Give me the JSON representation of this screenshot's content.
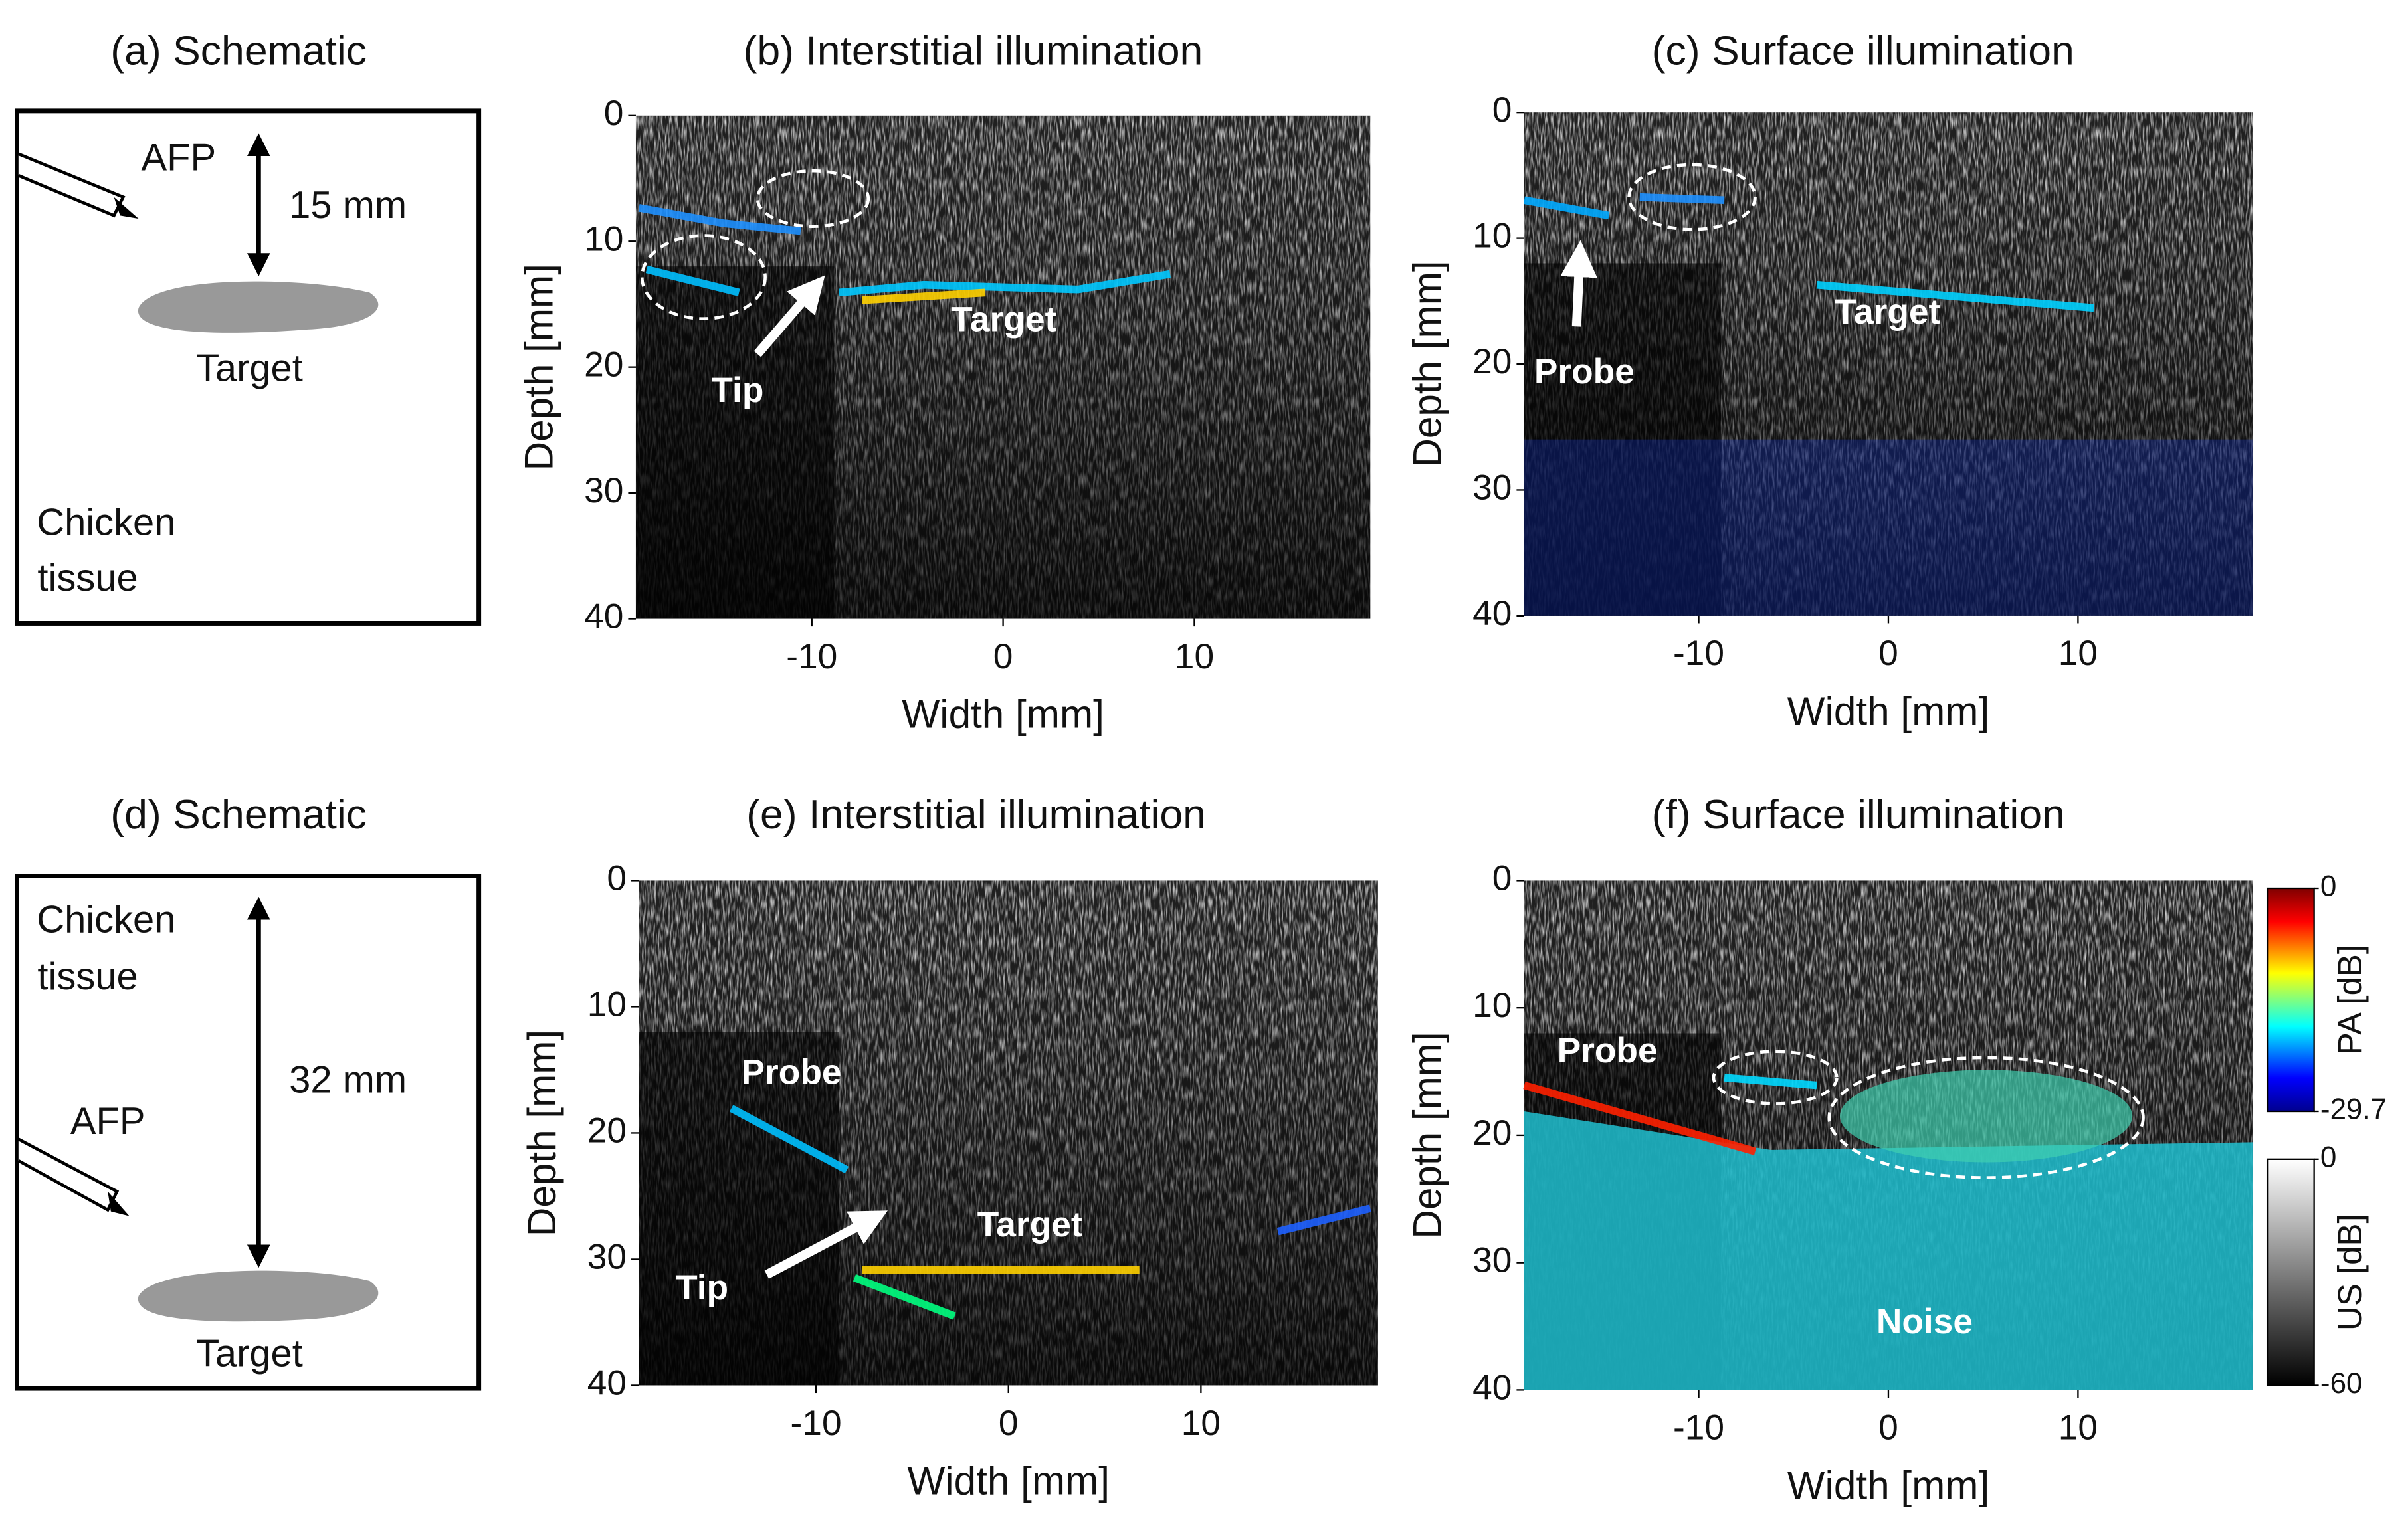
{
  "figure": {
    "panels": [
      {
        "kind": "schematic",
        "title": "(a) Schematic",
        "texts": [
          "AFP",
          "15 mm",
          "Target",
          "Chicken",
          "tissue"
        ]
      },
      {
        "kind": "image",
        "title": "(b) Interstitial illumination",
        "xlabel": "Width [mm]",
        "ylabel": "Depth [mm]",
        "xlim": [
          -19.2,
          19.2
        ],
        "ylim": [
          0,
          40
        ],
        "xticks": [
          -10,
          0,
          10
        ],
        "yticks": [
          0,
          10,
          20,
          30,
          40
        ],
        "annotations": [
          "Tip",
          "Target"
        ]
      },
      {
        "kind": "image",
        "title": "(c) Surface illumination",
        "xlabel": "Width [mm]",
        "ylabel": "Depth [mm]",
        "xlim": [
          -19.2,
          19.2
        ],
        "ylim": [
          0,
          40
        ],
        "xticks": [
          -10,
          0,
          10
        ],
        "yticks": [
          0,
          10,
          20,
          30,
          40
        ],
        "annotations": [
          "Probe",
          "Target"
        ]
      },
      {
        "kind": "schematic",
        "title": "(d) Schematic",
        "texts": [
          "Chicken",
          "tissue",
          "32 mm",
          "AFP",
          "Target"
        ]
      },
      {
        "kind": "image",
        "title": "(e) Interstitial illumination",
        "xlabel": "Width [mm]",
        "ylabel": "Depth [mm]",
        "xlim": [
          -19.2,
          19.2
        ],
        "ylim": [
          0,
          40
        ],
        "xticks": [
          -10,
          0,
          10
        ],
        "yticks": [
          0,
          10,
          20,
          30,
          40
        ],
        "annotations": [
          "Probe",
          "Target",
          "Tip"
        ]
      },
      {
        "kind": "image",
        "title": "(f) Surface illumination",
        "xlabel": "Width [mm]",
        "ylabel": "Depth [mm]",
        "xlim": [
          -19.2,
          19.2
        ],
        "ylim": [
          0,
          40
        ],
        "xticks": [
          -10,
          0,
          10
        ],
        "yticks": [
          0,
          10,
          20,
          30,
          40
        ],
        "annotations": [
          "Probe",
          "Noise"
        ]
      }
    ],
    "colorbars": [
      {
        "label": "PA [dB]",
        "ylim": [
          -29.7,
          0
        ],
        "ticks": [
          0,
          -29.7
        ]
      },
      {
        "label": "US [dB]",
        "ylim": [
          -60,
          0
        ],
        "ticks": [
          0,
          -60
        ]
      }
    ]
  }
}
